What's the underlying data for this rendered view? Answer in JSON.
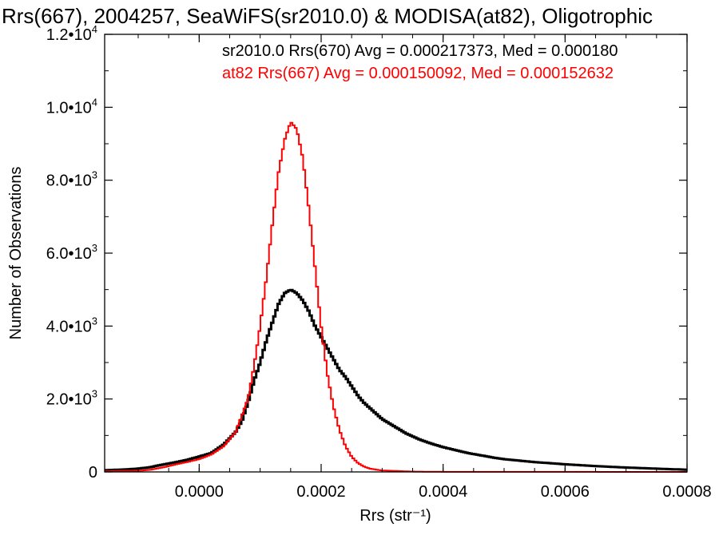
{
  "chart_data": {
    "type": "histogram",
    "title": "Rrs(667), 2004257, SeaWiFS(sr2010.0) & MODISA(at82), Oligotrophic",
    "xlabel": "Rrs (str⁻¹)",
    "ylabel": "Number of Observations",
    "xlim": [
      -0.000155,
      0.0008
    ],
    "ylim": [
      0,
      12000
    ],
    "x_ticks": [
      {
        "value": 0.0,
        "label": "0.0000"
      },
      {
        "value": 0.0002,
        "label": "0.0002"
      },
      {
        "value": 0.0004,
        "label": "0.0004"
      },
      {
        "value": 0.0006,
        "label": "0.0006"
      },
      {
        "value": 0.0008,
        "label": "0.0008"
      }
    ],
    "y_ticks": [
      {
        "value": 0,
        "mant": "0",
        "exp": ""
      },
      {
        "value": 2000,
        "mant": "2.0•10",
        "exp": "3"
      },
      {
        "value": 4000,
        "mant": "4.0•10",
        "exp": "3"
      },
      {
        "value": 6000,
        "mant": "6.0•10",
        "exp": "3"
      },
      {
        "value": 8000,
        "mant": "8.0•10",
        "exp": "3"
      },
      {
        "value": 10000,
        "mant": "1.0•10",
        "exp": "4"
      },
      {
        "value": 12000,
        "mant": "1.2•10",
        "exp": "4"
      }
    ],
    "grid": false,
    "legend": {
      "placement": "top-right",
      "entries": [
        {
          "text": "sr2010.0 Rrs(670) Avg = 0.000217373, Med = 0.000180",
          "color": "#000000"
        },
        {
          "text": "at82 Rrs(667) Avg = 0.000150092, Med = 0.000152632",
          "color": "#ff0000"
        }
      ]
    },
    "series": [
      {
        "name": "sr2010.0 Rrs(670)",
        "color": "#000000",
        "points": [
          [
            -0.00015,
            50
          ],
          [
            -0.00012,
            70
          ],
          [
            -0.0001,
            90
          ],
          [
            -8e-05,
            130
          ],
          [
            -6e-05,
            200
          ],
          [
            -4e-05,
            260
          ],
          [
            -2e-05,
            330
          ],
          [
            0.0,
            420
          ],
          [
            2e-05,
            520
          ],
          [
            4e-05,
            750
          ],
          [
            6e-05,
            1100
          ],
          [
            7e-05,
            1400
          ],
          [
            8e-05,
            1900
          ],
          [
            9e-05,
            2500
          ],
          [
            0.0001,
            3000
          ],
          [
            0.00011,
            3600
          ],
          [
            0.00012,
            4100
          ],
          [
            0.00013,
            4600
          ],
          [
            0.00014,
            4900
          ],
          [
            0.00015,
            5000
          ],
          [
            0.00016,
            4900
          ],
          [
            0.00017,
            4700
          ],
          [
            0.00018,
            4400
          ],
          [
            0.00019,
            4000
          ],
          [
            0.0002,
            3700
          ],
          [
            0.00021,
            3400
          ],
          [
            0.00022,
            3100
          ],
          [
            0.00023,
            2800
          ],
          [
            0.00024,
            2600
          ],
          [
            0.00025,
            2350
          ],
          [
            0.00026,
            2100
          ],
          [
            0.00027,
            1900
          ],
          [
            0.00028,
            1750
          ],
          [
            0.00029,
            1600
          ],
          [
            0.0003,
            1450
          ],
          [
            0.00032,
            1250
          ],
          [
            0.00034,
            1050
          ],
          [
            0.00036,
            900
          ],
          [
            0.00038,
            780
          ],
          [
            0.0004,
            680
          ],
          [
            0.00042,
            600
          ],
          [
            0.00044,
            520
          ],
          [
            0.00046,
            460
          ],
          [
            0.00048,
            400
          ],
          [
            0.0005,
            350
          ],
          [
            0.00055,
            270
          ],
          [
            0.0006,
            210
          ],
          [
            0.00065,
            160
          ],
          [
            0.0007,
            120
          ],
          [
            0.00075,
            90
          ],
          [
            0.0008,
            60
          ]
        ]
      },
      {
        "name": "at82 Rrs(667)",
        "color": "#ff0000",
        "points": [
          [
            -0.00015,
            20
          ],
          [
            -0.0001,
            30
          ],
          [
            -8e-05,
            60
          ],
          [
            -6e-05,
            120
          ],
          [
            -4e-05,
            200
          ],
          [
            -2e-05,
            270
          ],
          [
            0.0,
            350
          ],
          [
            2e-05,
            480
          ],
          [
            4e-05,
            700
          ],
          [
            6e-05,
            1100
          ],
          [
            8e-05,
            2000
          ],
          [
            9e-05,
            2900
          ],
          [
            0.0001,
            4000
          ],
          [
            0.00011,
            5300
          ],
          [
            0.00012,
            6800
          ],
          [
            0.00013,
            8200
          ],
          [
            0.00014,
            9100
          ],
          [
            0.00015,
            9600
          ],
          [
            0.00016,
            9400
          ],
          [
            0.00017,
            8600
          ],
          [
            0.00018,
            7200
          ],
          [
            0.00019,
            5600
          ],
          [
            0.0002,
            4000
          ],
          [
            0.00021,
            2700
          ],
          [
            0.00022,
            1800
          ],
          [
            0.00023,
            1150
          ],
          [
            0.00024,
            700
          ],
          [
            0.00025,
            420
          ],
          [
            0.00026,
            250
          ],
          [
            0.00027,
            150
          ],
          [
            0.00028,
            90
          ],
          [
            0.0003,
            40
          ],
          [
            0.00035,
            10
          ],
          [
            0.0004,
            3
          ],
          [
            0.0008,
            0
          ]
        ]
      }
    ]
  }
}
